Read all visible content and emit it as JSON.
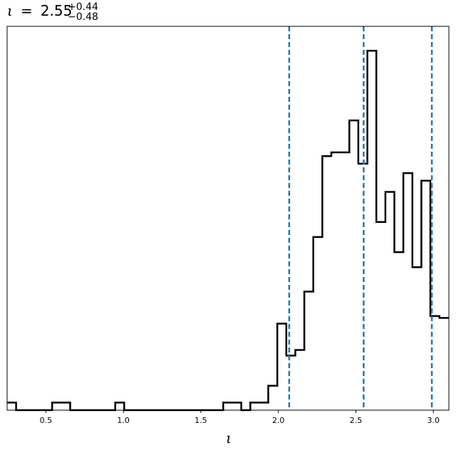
{
  "chart_data": {
    "type": "histogram",
    "title": {
      "symbol": "ι",
      "equals": "=",
      "value": "2.55",
      "upper": "+0.44",
      "lower": "−0.48"
    },
    "xlabel": "ι",
    "ylabel": "",
    "xlim": [
      0.25,
      3.1
    ],
    "ylim": [
      0,
      1.02
    ],
    "grid": false,
    "legend": "none",
    "x_ticks": [
      {
        "value": 0.5,
        "label": "0.5"
      },
      {
        "value": 1.0,
        "label": "1.0"
      },
      {
        "value": 1.5,
        "label": "1.5"
      },
      {
        "value": 2.0,
        "label": "2.0"
      },
      {
        "value": 2.5,
        "label": "2.5"
      },
      {
        "value": 3.0,
        "label": "3.0"
      }
    ],
    "bin_edges": [
      0.25,
      0.3081,
      0.3662,
      0.4243,
      0.4824,
      0.5405,
      0.5986,
      0.6567,
      0.7148,
      0.7729,
      0.831,
      0.8891,
      0.9472,
      1.0053,
      1.0634,
      1.1215,
      1.1796,
      1.2377,
      1.2958,
      1.3539,
      1.412,
      1.4701,
      1.5282,
      1.5863,
      1.6444,
      1.7025,
      1.7606,
      1.8187,
      1.8768,
      1.9349,
      1.993,
      2.0511,
      2.1092,
      2.1673,
      2.2254,
      2.2835,
      2.3416,
      2.3997,
      2.4578,
      2.5159,
      2.574,
      2.6321,
      2.6902,
      2.7483,
      2.8064,
      2.8645,
      2.9226,
      2.9807,
      3.0388,
      3.1
    ],
    "counts": [
      0.02,
      0,
      0,
      0,
      0,
      0.02,
      0.02,
      0,
      0,
      0,
      0,
      0,
      0.02,
      0,
      0,
      0,
      0,
      0,
      0,
      0,
      0,
      0,
      0,
      0,
      0.02,
      0.02,
      0,
      0.02,
      0.02,
      0.065,
      0.23,
      0.145,
      0.16,
      0.315,
      0.46,
      0.675,
      0.685,
      0.685,
      0.77,
      0.655,
      0.955,
      0.5,
      0.58,
      0.42,
      0.63,
      0.38,
      0.61,
      0.25,
      0.245
    ],
    "step_color": "#000000",
    "quantile_lines": [
      {
        "x": 2.07,
        "color": "#1f77b4"
      },
      {
        "x": 2.55,
        "color": "#1f77b4"
      },
      {
        "x": 2.99,
        "color": "#1f77b4"
      }
    ]
  }
}
